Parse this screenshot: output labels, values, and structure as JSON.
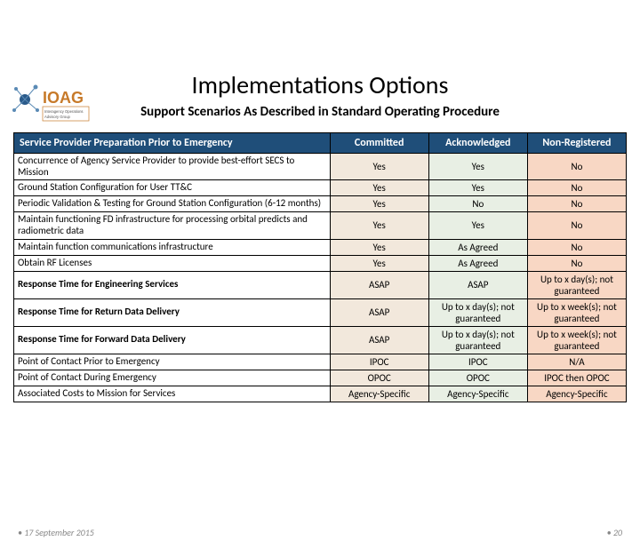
{
  "logo": {
    "text": "IOAG",
    "sub": "Interagency Operations Advisory Group"
  },
  "title": "Implementations Options",
  "subtitle": "Support Scenarios As Described in Standard Operating Procedure",
  "table": {
    "header": {
      "row_label": "Service Provider Preparation Prior to Emergency",
      "cols": [
        "Committed",
        "Acknowledged",
        "Non-Registered"
      ]
    },
    "col_colors": [
      "#f2e8dc",
      "#e8efe4",
      "#f8d7c4"
    ],
    "header_bg": "#1f4e79",
    "header_fg": "#ffffff",
    "rows": [
      {
        "desc": "Concurrence of Agency Service Provider to provide best-effort SECS to Mission",
        "bold": false,
        "vals": [
          "Yes",
          "Yes",
          "No"
        ]
      },
      {
        "desc": "Ground Station Configuration for User TT&C",
        "bold": false,
        "vals": [
          "Yes",
          "Yes",
          "No"
        ]
      },
      {
        "desc": "Periodic Validation & Testing for Ground Station Configuration (6-12 months)",
        "bold": false,
        "vals": [
          "Yes",
          "No",
          "No"
        ]
      },
      {
        "desc": "Maintain functioning FD infrastructure for processing orbital predicts and radiometric data",
        "bold": false,
        "vals": [
          "Yes",
          "Yes",
          "No"
        ]
      },
      {
        "desc": "Maintain function communications infrastructure",
        "bold": false,
        "vals": [
          "Yes",
          "As Agreed",
          "No"
        ]
      },
      {
        "desc": "Obtain RF Licenses",
        "bold": false,
        "vals": [
          "Yes",
          "As Agreed",
          "No"
        ]
      },
      {
        "desc": "Response Time for Engineering Services",
        "bold": true,
        "vals": [
          "ASAP",
          "ASAP",
          "Up to x day(s); not guaranteed"
        ]
      },
      {
        "desc": "Response Time for Return Data Delivery",
        "bold": true,
        "vals": [
          "ASAP",
          "Up to x day(s); not guaranteed",
          "Up to x week(s); not guaranteed"
        ]
      },
      {
        "desc": "Response Time for Forward Data Delivery",
        "bold": true,
        "vals": [
          "ASAP",
          "Up to x day(s); not guaranteed",
          "Up to x week(s); not guaranteed"
        ]
      },
      {
        "desc": "Point of Contact Prior to Emergency",
        "bold": false,
        "vals": [
          "IPOC",
          "IPOC",
          "N/A"
        ]
      },
      {
        "desc": "Point of Contact During Emergency",
        "bold": false,
        "vals": [
          "OPOC",
          "OPOC",
          "IPOC then OPOC"
        ]
      },
      {
        "desc": "Associated Costs to Mission for Services",
        "bold": false,
        "vals": [
          "Agency-Specific",
          "Agency-Specific",
          "Agency-Specific"
        ]
      }
    ]
  },
  "footer": {
    "left": "• 17 September 2015",
    "right": "• 20"
  }
}
